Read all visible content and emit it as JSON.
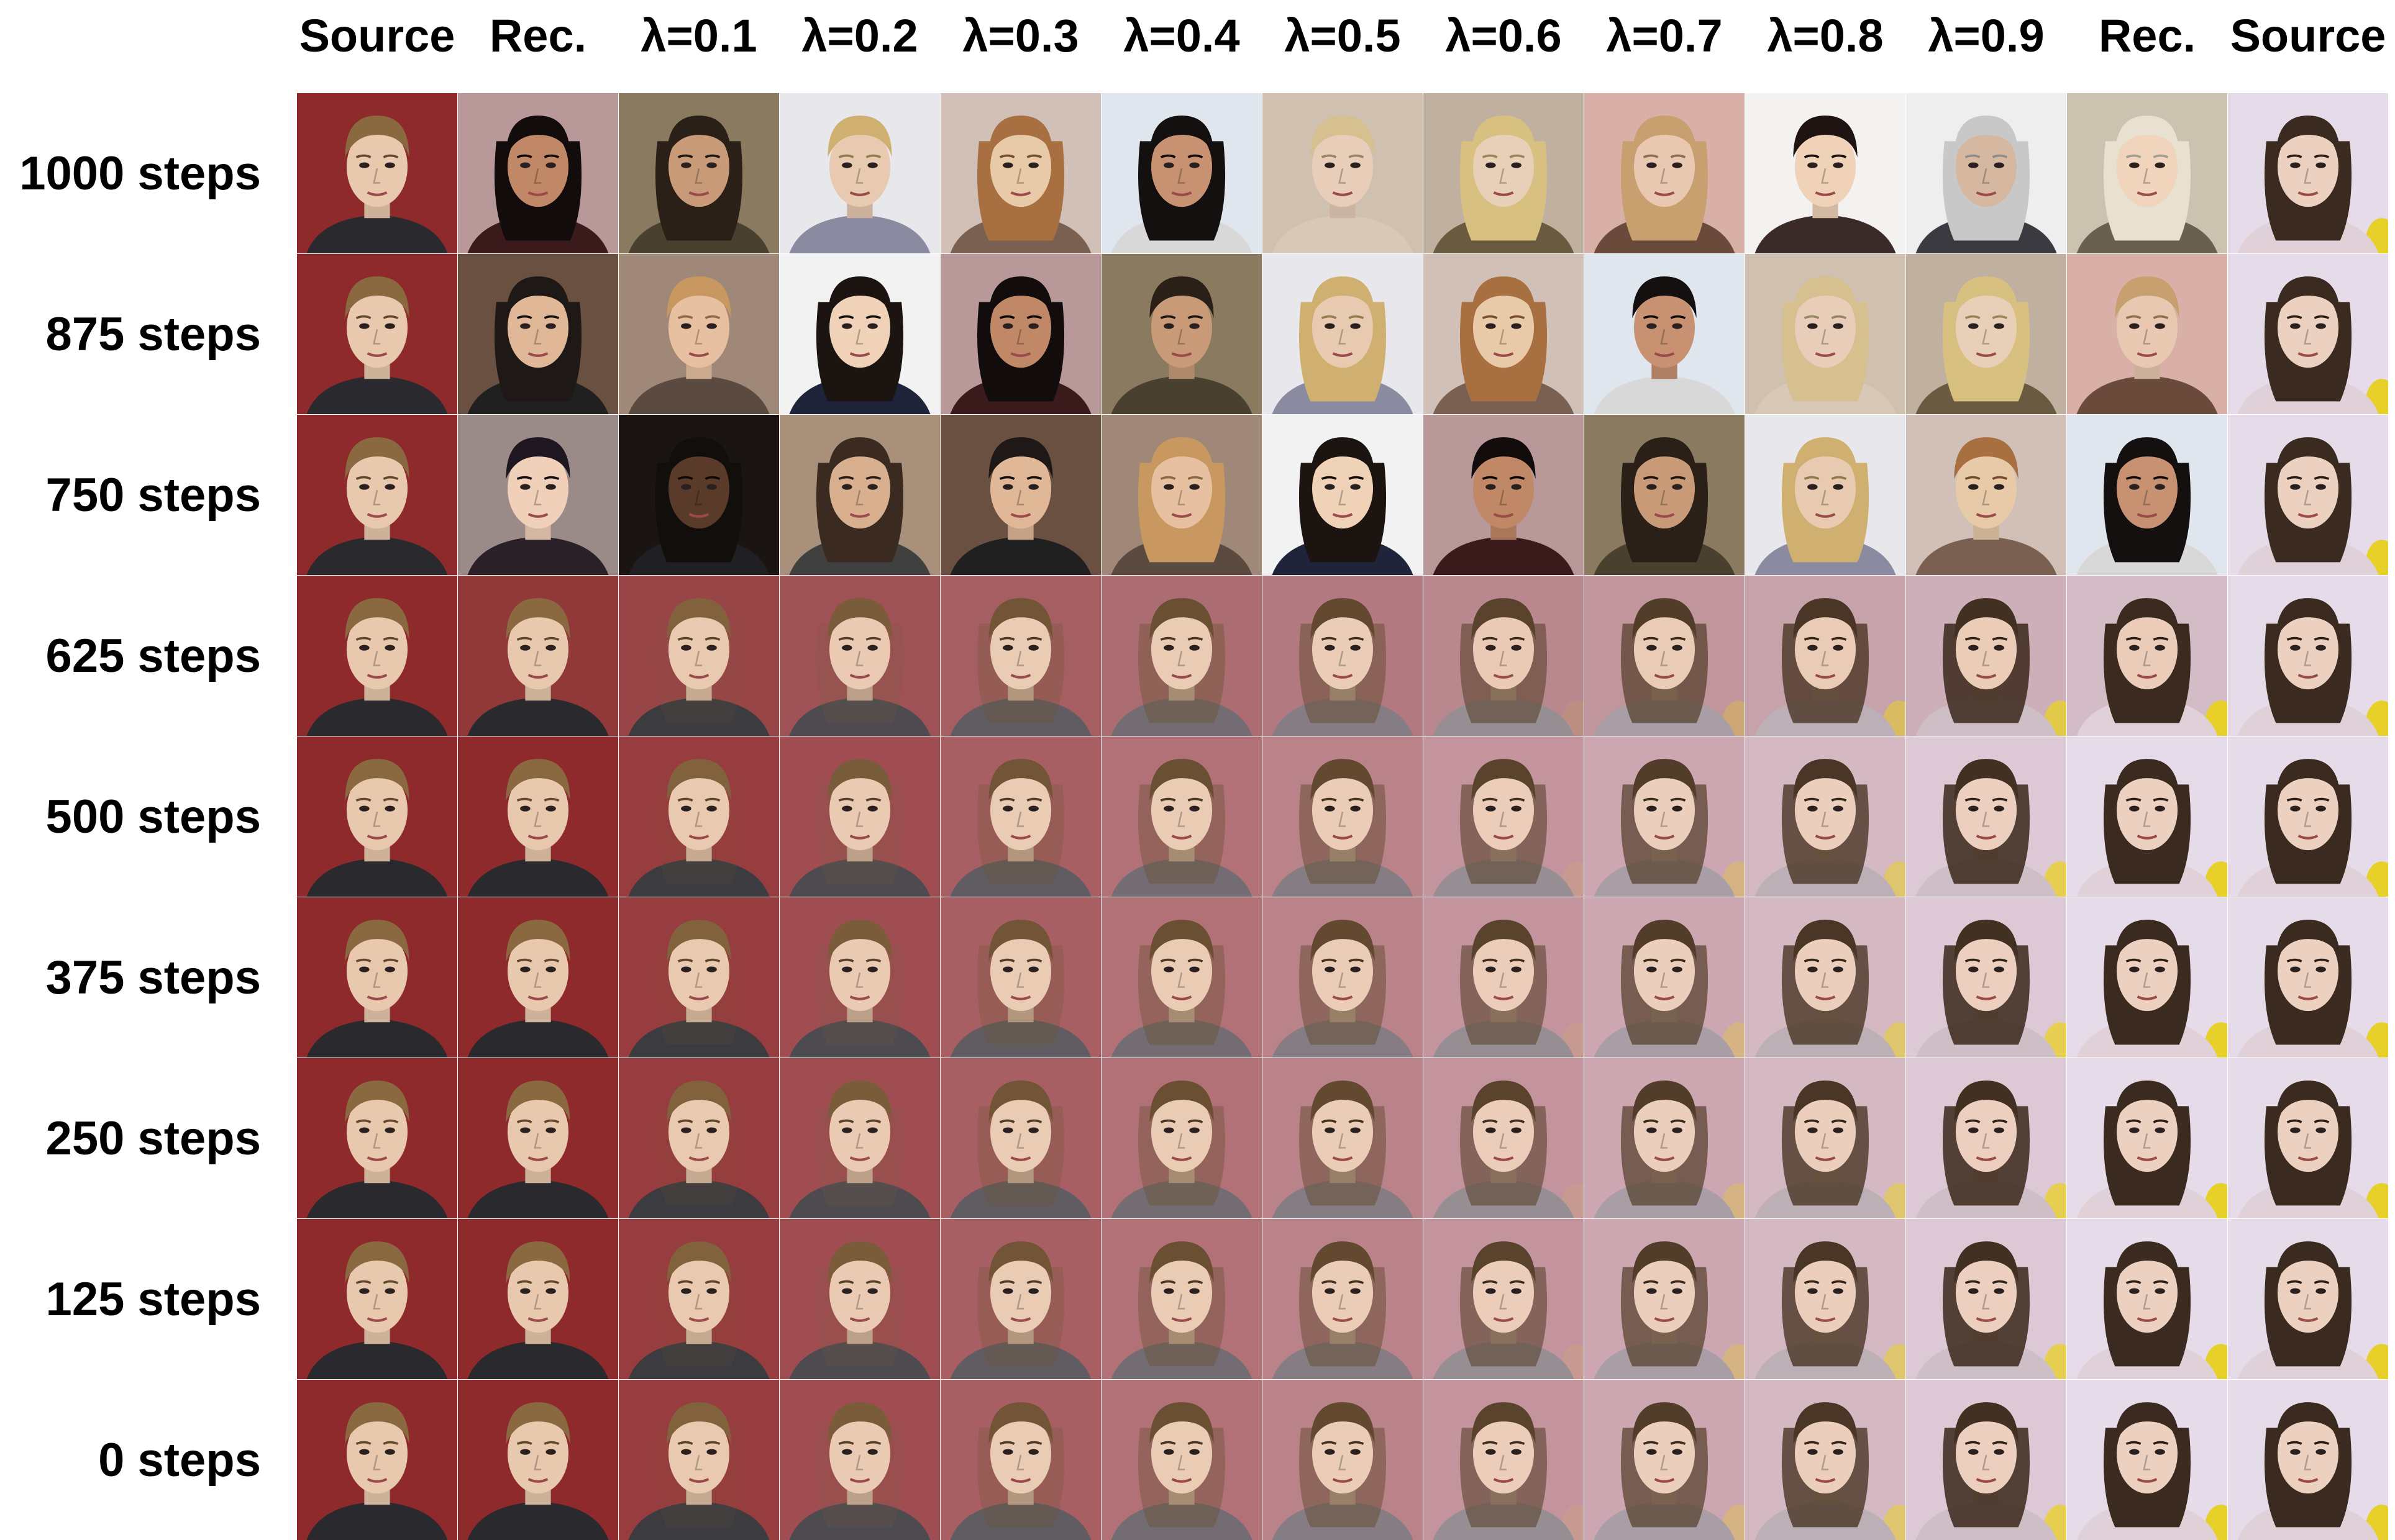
{
  "figure": {
    "column_headers": [
      "Source",
      "Rec.",
      "λ=0.1",
      "λ=0.2",
      "λ=0.3",
      "λ=0.4",
      "λ=0.5",
      "λ=0.6",
      "λ=0.7",
      "λ=0.8",
      "λ=0.9",
      "Rec.",
      "Source"
    ],
    "row_labels": [
      "1000 steps",
      "875 steps",
      "750 steps",
      "625 steps",
      "500 steps",
      "375 steps",
      "250 steps",
      "125 steps",
      "0 steps"
    ],
    "colors": {
      "source_a_bg": "#8e2a2c",
      "source_b_bg": "#e6dbe8",
      "hair_dark": "#3a2a20",
      "hair_blond": "#c9a060",
      "skin_light": "#e9c9ae",
      "skin_tan": "#c89a78",
      "skin_dark": "#5a3a28",
      "shirt_dark": "#2a2a2e",
      "accent_yellow": "#e8d02a"
    }
  }
}
